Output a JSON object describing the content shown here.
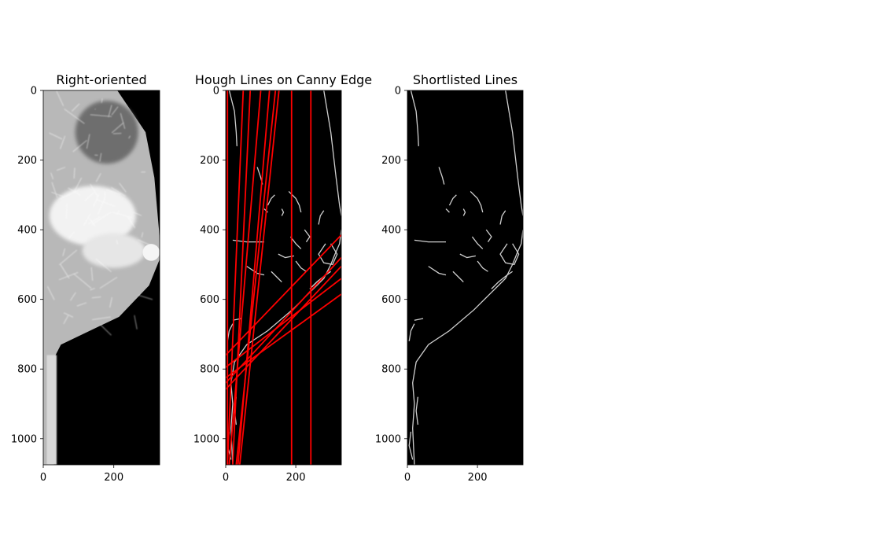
{
  "chart_data": [
    {
      "type": "image",
      "title": "Right-oriented",
      "image_shape": [
        1075,
        330
      ],
      "xlim": [
        0,
        330
      ],
      "ylim": [
        1075,
        0
      ],
      "xticks": [
        0,
        200
      ],
      "yticks": [
        0,
        200,
        400,
        600,
        800,
        1000
      ],
      "image_description": "grayscale mammogram, breast tissue bright on black background, facing right",
      "features": {
        "chest_wall_x": [
          30,
          65
        ],
        "boundary_y": [
          0,
          120,
          250,
          400,
          480,
          560,
          650,
          730,
          760,
          830,
          1000,
          1075
        ],
        "boundary_x": [
          210,
          290,
          315,
          328,
          332,
          300,
          215,
          50,
          35,
          30,
          35,
          30
        ],
        "blob": {
          "cx": 306,
          "cy": 465,
          "r": 24
        }
      }
    },
    {
      "type": "image-with-lines",
      "title": "Hough Lines on Canny Edge",
      "image_shape": [
        1075,
        330
      ],
      "xlim": [
        0,
        330
      ],
      "ylim": [
        1075,
        0
      ],
      "xticks": [
        0,
        200
      ],
      "yticks": [
        0,
        200,
        400,
        600,
        800,
        1000
      ],
      "image_description": "Canny edge map (thin gray edges on black) overlaid with red Hough lines",
      "line_color": "#ff0000",
      "lines": [
        {
          "x1": 5,
          "y1": 0,
          "x2": 5,
          "y2": 1075
        },
        {
          "x1": 188,
          "y1": 0,
          "x2": 188,
          "y2": 1075
        },
        {
          "x1": 243,
          "y1": 0,
          "x2": 243,
          "y2": 1075
        },
        {
          "x1": 50,
          "y1": 0,
          "x2": 5,
          "y2": 1075
        },
        {
          "x1": 70,
          "y1": 0,
          "x2": 20,
          "y2": 1075
        },
        {
          "x1": 125,
          "y1": 0,
          "x2": 35,
          "y2": 1075
        },
        {
          "x1": 142,
          "y1": 0,
          "x2": 30,
          "y2": 1075
        },
        {
          "x1": 152,
          "y1": 0,
          "x2": 40,
          "y2": 1075
        },
        {
          "x1": 100,
          "y1": 0,
          "x2": 10,
          "y2": 1075
        },
        {
          "x1": 0,
          "y1": 760,
          "x2": 330,
          "y2": 415
        },
        {
          "x1": 0,
          "y1": 840,
          "x2": 330,
          "y2": 480
        },
        {
          "x1": 0,
          "y1": 858,
          "x2": 330,
          "y2": 505
        },
        {
          "x1": 0,
          "y1": 795,
          "x2": 330,
          "y2": 540
        },
        {
          "x1": 0,
          "y1": 825,
          "x2": 330,
          "y2": 585
        }
      ],
      "edges": [
        [
          [
            280,
            0
          ],
          [
            300,
            120
          ],
          [
            315,
            250
          ],
          [
            325,
            330
          ],
          [
            330,
            360
          ]
        ],
        [
          [
            10,
            0
          ],
          [
            25,
            60
          ],
          [
            30,
            120
          ],
          [
            32,
            160
          ]
        ],
        [
          [
            330,
            400
          ],
          [
            325,
            440
          ],
          [
            312,
            470
          ],
          [
            300,
            500
          ],
          [
            280,
            540
          ],
          [
            240,
            580
          ],
          [
            190,
            630
          ],
          [
            120,
            690
          ],
          [
            60,
            730
          ],
          [
            25,
            780
          ],
          [
            15,
            840
          ],
          [
            20,
            900
          ],
          [
            15,
            970
          ],
          [
            20,
            1075
          ]
        ],
        [
          [
            300,
            440
          ],
          [
            318,
            470
          ],
          [
            305,
            500
          ],
          [
            280,
            495
          ],
          [
            265,
            470
          ],
          [
            285,
            440
          ]
        ],
        [
          [
            300,
            520
          ],
          [
            285,
            530
          ],
          [
            260,
            550
          ],
          [
            240,
            570
          ]
        ],
        [
          [
            280,
            345
          ],
          [
            270,
            360
          ],
          [
            265,
            385
          ]
        ],
        [
          [
            225,
            400
          ],
          [
            240,
            420
          ],
          [
            230,
            435
          ]
        ],
        [
          [
            120,
            330
          ],
          [
            130,
            310
          ],
          [
            140,
            300
          ]
        ],
        [
          [
            150,
            470
          ],
          [
            170,
            480
          ],
          [
            195,
            475
          ]
        ],
        [
          [
            20,
            430
          ],
          [
            60,
            435
          ],
          [
            110,
            435
          ]
        ],
        [
          [
            130,
            520
          ],
          [
            150,
            540
          ],
          [
            160,
            550
          ]
        ],
        [
          [
            60,
            505
          ],
          [
            90,
            525
          ],
          [
            110,
            530
          ]
        ],
        [
          [
            90,
            220
          ],
          [
            100,
            250
          ],
          [
            105,
            270
          ]
        ],
        [
          [
            180,
            290
          ],
          [
            200,
            310
          ],
          [
            210,
            330
          ],
          [
            215,
            350
          ]
        ],
        [
          [
            160,
            340
          ],
          [
            165,
            350
          ],
          [
            160,
            360
          ]
        ],
        [
          [
            110,
            340
          ],
          [
            120,
            350
          ]
        ],
        [
          [
            20,
            660
          ],
          [
            45,
            655
          ]
        ],
        [
          [
            5,
            720
          ],
          [
            10,
            690
          ],
          [
            20,
            670
          ]
        ],
        [
          [
            185,
            420
          ],
          [
            200,
            440
          ],
          [
            215,
            455
          ]
        ],
        [
          [
            200,
            490
          ],
          [
            215,
            510
          ],
          [
            230,
            520
          ]
        ],
        [
          [
            30,
            880
          ],
          [
            25,
            920
          ],
          [
            30,
            960
          ]
        ],
        [
          [
            10,
            980
          ],
          [
            5,
            1020
          ],
          [
            15,
            1060
          ]
        ]
      ]
    },
    {
      "type": "image",
      "title": "Shortlisted Lines",
      "image_shape": [
        1075,
        330
      ],
      "xlim": [
        0,
        330
      ],
      "ylim": [
        1075,
        0
      ],
      "xticks": [
        0,
        200
      ],
      "yticks": [
        0,
        200,
        400,
        600,
        800,
        1000
      ],
      "image_description": "Canny edge map (thin gray edges on black), no lines drawn"
    }
  ]
}
